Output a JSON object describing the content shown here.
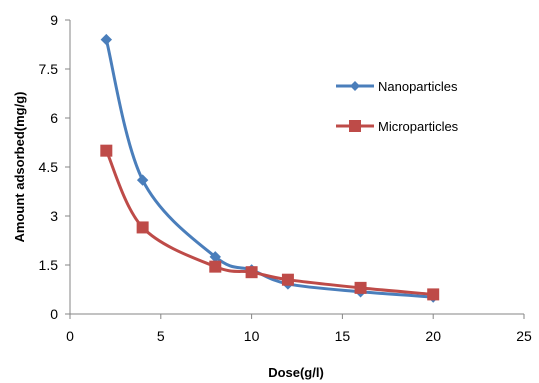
{
  "chart_data": {
    "type": "scatter",
    "title": "",
    "xlabel": "Dose(g/l)",
    "ylabel": "Amount adsorbed(mg/g)",
    "xlim": [
      0,
      25
    ],
    "ylim": [
      0,
      9
    ],
    "xticks": [
      "0",
      "5",
      "10",
      "15",
      "20",
      "25"
    ],
    "yticks": [
      "0",
      "1.5",
      "3",
      "4.5",
      "6",
      "7.5",
      "9"
    ],
    "grid": false,
    "smooth_lines": true,
    "legend": "right",
    "series": [
      {
        "name": "Nanoparticles",
        "color": "#4a7ebb",
        "marker": "diamond",
        "x": [
          2,
          4,
          8,
          10,
          12,
          16,
          20
        ],
        "y": [
          8.4,
          4.1,
          1.75,
          1.35,
          0.92,
          0.68,
          0.52
        ]
      },
      {
        "name": "Microparticles",
        "color": "#be4b48",
        "marker": "square",
        "x": [
          2,
          4,
          8,
          10,
          12,
          16,
          20
        ],
        "y": [
          5.0,
          2.65,
          1.45,
          1.28,
          1.05,
          0.8,
          0.6
        ]
      }
    ]
  }
}
